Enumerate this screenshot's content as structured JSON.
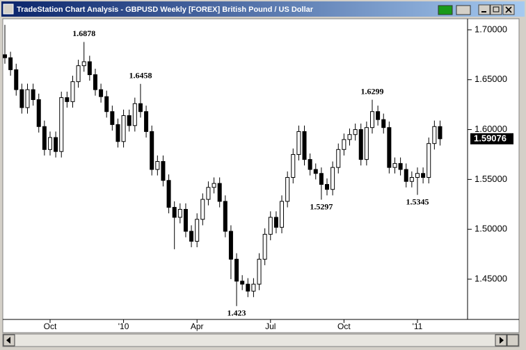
{
  "window": {
    "title": "TradeStation Chart Analysis - GBPUSD Weekly [FOREX] British Pound / US Dollar"
  },
  "chart_data": {
    "type": "candlestick",
    "categories": [
      null,
      null,
      null,
      null,
      null,
      null,
      null,
      null,
      "Oct",
      null,
      null,
      null,
      null,
      null,
      null,
      null,
      null,
      null,
      null,
      null,
      null,
      "'10",
      null,
      null,
      null,
      null,
      null,
      null,
      null,
      null,
      null,
      null,
      null,
      null,
      "Apr",
      null,
      null,
      null,
      null,
      null,
      null,
      null,
      null,
      null,
      null,
      null,
      null,
      "Jul",
      null,
      null,
      null,
      null,
      null,
      null,
      null,
      null,
      null,
      null,
      null,
      null,
      "Oct",
      null,
      null,
      null,
      null,
      null,
      null,
      null,
      null,
      null,
      null,
      null,
      null,
      "'11",
      null,
      null,
      null,
      null
    ],
    "ohlc": [
      [
        1.675,
        1.705,
        1.666,
        1.672
      ],
      [
        1.672,
        1.678,
        1.654,
        1.66
      ],
      [
        1.66,
        1.666,
        1.634,
        1.64
      ],
      [
        1.64,
        1.646,
        1.616,
        1.622
      ],
      [
        1.622,
        1.646,
        1.616,
        1.64
      ],
      [
        1.64,
        1.646,
        1.624,
        1.63
      ],
      [
        1.63,
        1.636,
        1.597,
        1.603
      ],
      [
        1.603,
        1.609,
        1.574,
        1.58
      ],
      [
        1.58,
        1.598,
        1.574,
        1.592
      ],
      [
        1.592,
        1.598,
        1.572,
        1.578
      ],
      [
        1.578,
        1.638,
        1.572,
        1.632
      ],
      [
        1.632,
        1.638,
        1.622,
        1.628
      ],
      [
        1.628,
        1.654,
        1.622,
        1.648
      ],
      [
        1.648,
        1.67,
        1.642,
        1.664
      ],
      [
        1.664,
        1.6878,
        1.658,
        1.668
      ],
      [
        1.668,
        1.674,
        1.649,
        1.655
      ],
      [
        1.655,
        1.661,
        1.634,
        1.64
      ],
      [
        1.64,
        1.646,
        1.627,
        1.633
      ],
      [
        1.633,
        1.639,
        1.612,
        1.618
      ],
      [
        1.618,
        1.624,
        1.599,
        1.605
      ],
      [
        1.605,
        1.611,
        1.582,
        1.588
      ],
      [
        1.588,
        1.62,
        1.582,
        1.614
      ],
      [
        1.614,
        1.62,
        1.598,
        1.604
      ],
      [
        1.604,
        1.632,
        1.598,
        1.626
      ],
      [
        1.626,
        1.6458,
        1.612,
        1.618
      ],
      [
        1.618,
        1.624,
        1.592,
        1.598
      ],
      [
        1.598,
        1.604,
        1.554,
        1.56
      ],
      [
        1.56,
        1.574,
        1.554,
        1.568
      ],
      [
        1.568,
        1.574,
        1.543,
        1.549
      ],
      [
        1.549,
        1.555,
        1.516,
        1.522
      ],
      [
        1.522,
        1.528,
        1.48,
        1.512
      ],
      [
        1.512,
        1.526,
        1.506,
        1.52
      ],
      [
        1.52,
        1.526,
        1.492,
        1.498
      ],
      [
        1.498,
        1.504,
        1.482,
        1.488
      ],
      [
        1.488,
        1.516,
        1.482,
        1.51
      ],
      [
        1.51,
        1.536,
        1.504,
        1.53
      ],
      [
        1.53,
        1.548,
        1.524,
        1.542
      ],
      [
        1.542,
        1.552,
        1.536,
        1.546
      ],
      [
        1.546,
        1.552,
        1.522,
        1.528
      ],
      [
        1.528,
        1.534,
        1.492,
        1.498
      ],
      [
        1.498,
        1.504,
        1.45,
        1.47
      ],
      [
        1.47,
        1.476,
        1.423,
        1.448
      ],
      [
        1.448,
        1.454,
        1.439,
        1.445
      ],
      [
        1.445,
        1.451,
        1.432,
        1.438
      ],
      [
        1.438,
        1.451,
        1.432,
        1.445
      ],
      [
        1.445,
        1.476,
        1.439,
        1.47
      ],
      [
        1.47,
        1.501,
        1.464,
        1.495
      ],
      [
        1.495,
        1.518,
        1.489,
        1.512
      ],
      [
        1.512,
        1.518,
        1.496,
        1.502
      ],
      [
        1.502,
        1.534,
        1.496,
        1.528
      ],
      [
        1.528,
        1.558,
        1.522,
        1.552
      ],
      [
        1.552,
        1.581,
        1.546,
        1.575
      ],
      [
        1.575,
        1.604,
        1.569,
        1.598
      ],
      [
        1.598,
        1.604,
        1.564,
        1.57
      ],
      [
        1.57,
        1.576,
        1.554,
        1.56
      ],
      [
        1.56,
        1.566,
        1.55,
        1.556
      ],
      [
        1.556,
        1.562,
        1.5297,
        1.545
      ],
      [
        1.545,
        1.551,
        1.534,
        1.54
      ],
      [
        1.54,
        1.568,
        1.534,
        1.562
      ],
      [
        1.562,
        1.586,
        1.556,
        1.58
      ],
      [
        1.58,
        1.596,
        1.574,
        1.59
      ],
      [
        1.59,
        1.601,
        1.584,
        1.595
      ],
      [
        1.595,
        1.606,
        1.589,
        1.6
      ],
      [
        1.6,
        1.606,
        1.564,
        1.57
      ],
      [
        1.57,
        1.608,
        1.564,
        1.602
      ],
      [
        1.602,
        1.6299,
        1.596,
        1.618
      ],
      [
        1.618,
        1.624,
        1.604,
        1.61
      ],
      [
        1.61,
        1.616,
        1.596,
        1.602
      ],
      [
        1.602,
        1.608,
        1.556,
        1.562
      ],
      [
        1.562,
        1.572,
        1.556,
        1.566
      ],
      [
        1.566,
        1.572,
        1.554,
        1.56
      ],
      [
        1.56,
        1.566,
        1.542,
        1.548
      ],
      [
        1.548,
        1.558,
        1.542,
        1.552
      ],
      [
        1.552,
        1.562,
        1.5345,
        1.556
      ],
      [
        1.556,
        1.562,
        1.546,
        1.552
      ],
      [
        1.552,
        1.592,
        1.546,
        1.586
      ],
      [
        1.586,
        1.609,
        1.58,
        1.603
      ],
      [
        1.603,
        1.609,
        1.584,
        1.59076
      ]
    ],
    "up_color": "#ffffff",
    "down_color": "#000000",
    "ylim": [
      1.411,
      1.7104
    ],
    "yticks": [
      {
        "value": 1.45,
        "label": "1.45000"
      },
      {
        "value": 1.5,
        "label": "1.50000"
      },
      {
        "value": 1.55,
        "label": "1.55000"
      },
      {
        "value": 1.6,
        "label": "1.60000"
      },
      {
        "value": 1.65,
        "label": "1.65000"
      },
      {
        "value": 1.7,
        "label": "1.70000"
      }
    ]
  }
}
